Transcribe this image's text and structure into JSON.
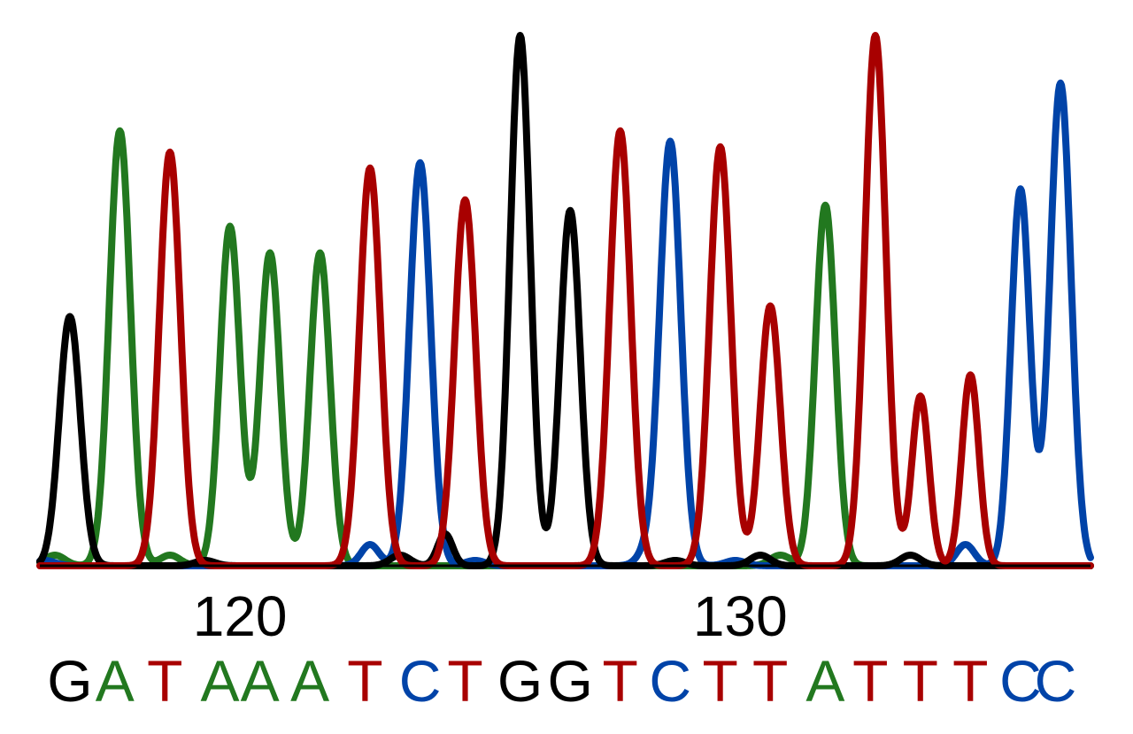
{
  "chart_data": {
    "type": "line",
    "title": "",
    "xlabel": "",
    "ylabel": "",
    "x_range": [
      116,
      137
    ],
    "y_range": [
      0,
      100
    ],
    "grid": false,
    "legend": "none",
    "x_ticks": [
      {
        "value": 120,
        "label": "120"
      },
      {
        "value": 130,
        "label": "130"
      }
    ],
    "colors": {
      "A": "#22781f",
      "C": "#0043a8",
      "G": "#000000",
      "T": "#a80000"
    },
    "bases": [
      {
        "pos": 116.6,
        "base": "G"
      },
      {
        "pos": 117.5,
        "base": "A"
      },
      {
        "pos": 118.5,
        "base": "T"
      },
      {
        "pos": 119.6,
        "base": "A"
      },
      {
        "pos": 120.4,
        "base": "A"
      },
      {
        "pos": 121.4,
        "base": "A"
      },
      {
        "pos": 122.5,
        "base": "T"
      },
      {
        "pos": 123.6,
        "base": "C"
      },
      {
        "pos": 124.5,
        "base": "T"
      },
      {
        "pos": 125.6,
        "base": "G"
      },
      {
        "pos": 126.6,
        "base": "G"
      },
      {
        "pos": 127.6,
        "base": "T"
      },
      {
        "pos": 128.6,
        "base": "C"
      },
      {
        "pos": 129.6,
        "base": "T"
      },
      {
        "pos": 130.6,
        "base": "T"
      },
      {
        "pos": 131.7,
        "base": "A"
      },
      {
        "pos": 132.6,
        "base": "T"
      },
      {
        "pos": 133.6,
        "base": "T"
      },
      {
        "pos": 134.6,
        "base": "T"
      },
      {
        "pos": 135.6,
        "base": "C"
      },
      {
        "pos": 136.3,
        "base": "C"
      }
    ],
    "series": [
      {
        "base": "G",
        "color": "#000000",
        "peaks": [
          {
            "x": 116.6,
            "h": 47,
            "w": 0.21
          },
          {
            "x": 119.3,
            "h": 1,
            "w": 0.2
          },
          {
            "x": 123.2,
            "h": 2,
            "w": 0.2
          },
          {
            "x": 124.1,
            "h": 6,
            "w": 0.15
          },
          {
            "x": 125.6,
            "h": 100,
            "w": 0.2
          },
          {
            "x": 126.6,
            "h": 67,
            "w": 0.2
          },
          {
            "x": 128.7,
            "h": 1,
            "w": 0.2
          },
          {
            "x": 130.4,
            "h": 2,
            "w": 0.2
          },
          {
            "x": 133.4,
            "h": 2,
            "w": 0.2
          }
        ]
      },
      {
        "base": "A",
        "color": "#22781f",
        "peaks": [
          {
            "x": 116.3,
            "h": 2,
            "w": 0.2
          },
          {
            "x": 117.6,
            "h": 82,
            "w": 0.21
          },
          {
            "x": 118.6,
            "h": 2,
            "w": 0.2
          },
          {
            "x": 119.8,
            "h": 64,
            "w": 0.2
          },
          {
            "x": 120.6,
            "h": 59,
            "w": 0.2
          },
          {
            "x": 121.6,
            "h": 59,
            "w": 0.2
          },
          {
            "x": 130.8,
            "h": 2,
            "w": 0.2
          },
          {
            "x": 131.7,
            "h": 68,
            "w": 0.2
          }
        ]
      },
      {
        "base": "T",
        "color": "#a80000",
        "peaks": [
          {
            "x": 118.6,
            "h": 78,
            "w": 0.21
          },
          {
            "x": 122.6,
            "h": 75,
            "w": 0.21
          },
          {
            "x": 124.5,
            "h": 69,
            "w": 0.21
          },
          {
            "x": 127.6,
            "h": 82,
            "w": 0.21
          },
          {
            "x": 129.6,
            "h": 79,
            "w": 0.21
          },
          {
            "x": 130.6,
            "h": 49,
            "w": 0.2
          },
          {
            "x": 132.7,
            "h": 100,
            "w": 0.21
          },
          {
            "x": 133.6,
            "h": 32,
            "w": 0.17
          },
          {
            "x": 134.6,
            "h": 36,
            "w": 0.17
          }
        ]
      },
      {
        "base": "C",
        "color": "#0043a8",
        "peaks": [
          {
            "x": 116.1,
            "h": 1,
            "w": 0.2
          },
          {
            "x": 122.6,
            "h": 4,
            "w": 0.18
          },
          {
            "x": 123.6,
            "h": 76,
            "w": 0.21
          },
          {
            "x": 124.7,
            "h": 1,
            "w": 0.2
          },
          {
            "x": 128.1,
            "h": 2,
            "w": 0.18
          },
          {
            "x": 128.6,
            "h": 80,
            "w": 0.21
          },
          {
            "x": 129.9,
            "h": 1,
            "w": 0.2
          },
          {
            "x": 134.5,
            "h": 4,
            "w": 0.18
          },
          {
            "x": 135.6,
            "h": 71,
            "w": 0.19
          },
          {
            "x": 136.4,
            "h": 91,
            "w": 0.21
          }
        ]
      }
    ]
  }
}
